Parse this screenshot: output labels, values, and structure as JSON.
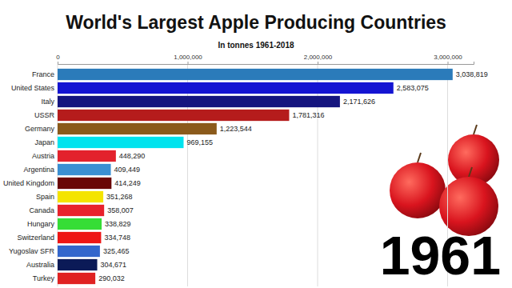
{
  "chart_data": {
    "type": "bar",
    "title": "World's Largest Apple Producing Countries",
    "subtitle": "In tonnes 1961-2018",
    "annotation": "1961",
    "orientation": "horizontal",
    "categories": [
      "France",
      "United States",
      "Italy",
      "USSR",
      "Germany",
      "Japan",
      "Austria",
      "Argentina",
      "United Kingdom",
      "Spain",
      "Canada",
      "Hungary",
      "Switzerland",
      "Yugoslav SFR",
      "Australia",
      "Turkey"
    ],
    "values": [
      3038819,
      2583075,
      2171626,
      1781316,
      1223544,
      969155,
      448290,
      409449,
      414249,
      351268,
      358007,
      338829,
      334748,
      325465,
      304671,
      290032
    ],
    "value_labels": [
      "3,038,819",
      "2,583,075",
      "2,171,626",
      "1,781,316",
      "1,223,544",
      "969,155",
      "448,290",
      "409,449",
      "414,249",
      "351,268",
      "358,007",
      "338,829",
      "334,748",
      "325,465",
      "304,671",
      "290,032"
    ],
    "colors": [
      "#2b7bba",
      "#1414d2",
      "#15157f",
      "#b51c1c",
      "#8b5a1b",
      "#00e3ee",
      "#e3222c",
      "#3a8fd2",
      "#6a0606",
      "#f4e400",
      "#e8222c",
      "#36dd36",
      "#ee1515",
      "#3366cc",
      "#0b1a57",
      "#e02222"
    ],
    "xlim": [
      0,
      3200000
    ],
    "xticks": [
      {
        "value": 0,
        "label": "0"
      },
      {
        "value": 1000000,
        "label": "1,000,000"
      },
      {
        "value": 2000000,
        "label": "2,000,000"
      },
      {
        "value": 3000000,
        "label": "3,000,000"
      }
    ],
    "grid": true,
    "data_labels": true
  }
}
